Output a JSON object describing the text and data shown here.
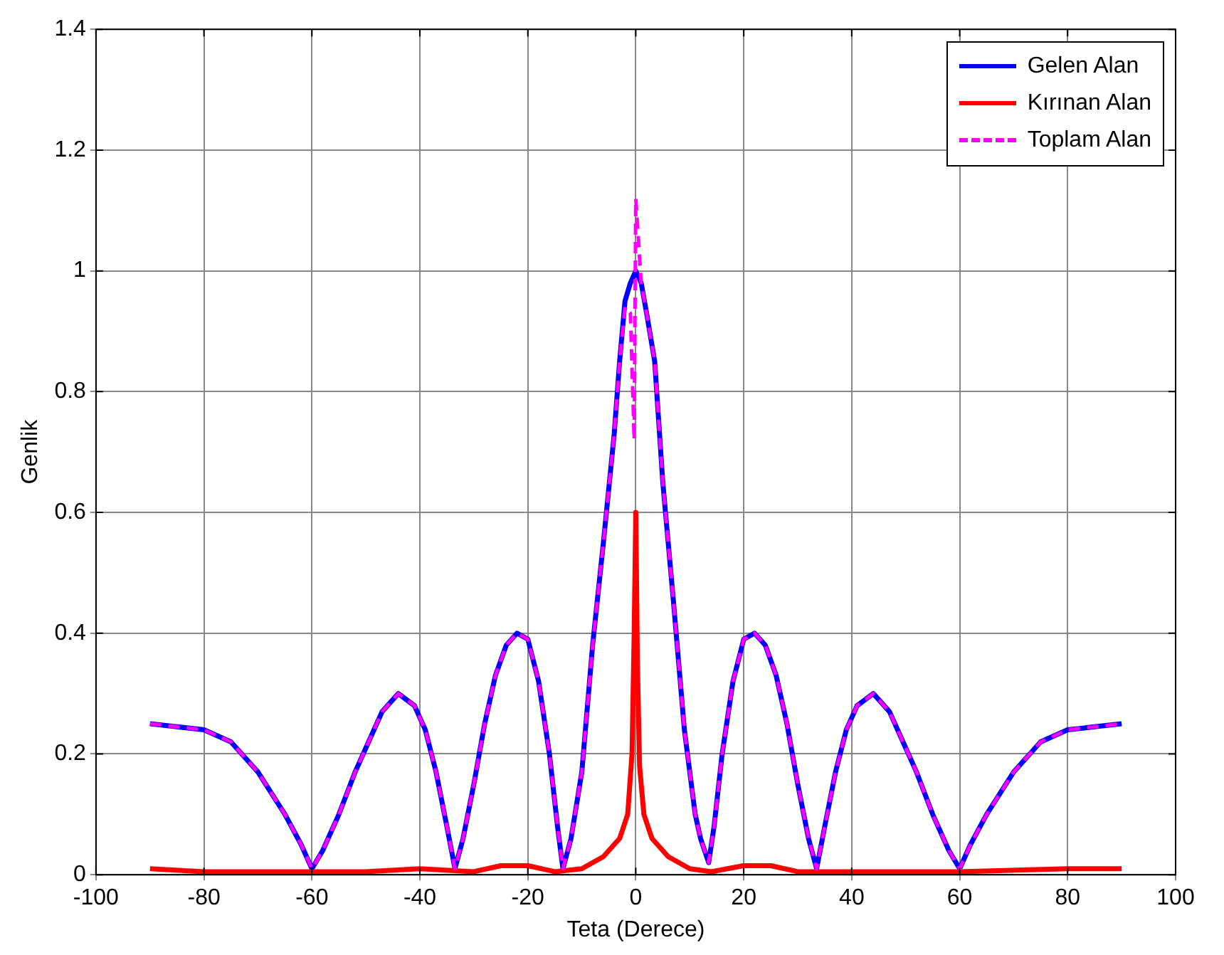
{
  "chart_data": {
    "type": "line",
    "xlabel": "Teta (Derece)",
    "ylabel": "Genlik",
    "xlim": [
      -100,
      100
    ],
    "xticks": [
      -100,
      -80,
      -60,
      -40,
      -20,
      0,
      20,
      40,
      60,
      80,
      100
    ],
    "ylim": [
      0,
      1.4
    ],
    "yticks": [
      0,
      0.2,
      0.4,
      0.6,
      0.8,
      1,
      1.2,
      1.4
    ],
    "grid": true,
    "legend": "top right",
    "marker": "none",
    "series": [
      {
        "name": "Gelen Alan",
        "color": "#0000ff",
        "line_style": "solid",
        "x": [
          -90,
          -85,
          -80,
          -75,
          -70,
          -65,
          -62,
          -60,
          -58,
          -55,
          -52,
          -50,
          -47,
          -44,
          -41,
          -39,
          -37,
          -35,
          -33.5,
          -32,
          -30,
          -28,
          -26,
          -24,
          -22,
          -20,
          -18,
          -16,
          -14.5,
          -13.5,
          -12,
          -10,
          -8,
          -6,
          -4,
          -3,
          -2,
          -1,
          0,
          1,
          2,
          3.5,
          5,
          7,
          9,
          11,
          12,
          13.5,
          14.5,
          16,
          18,
          20,
          22,
          24,
          26,
          28,
          30,
          32,
          33.5,
          35,
          37,
          39,
          41,
          44,
          47,
          50,
          52,
          55,
          58,
          60,
          62,
          65,
          70,
          75,
          80,
          85,
          90
        ],
        "values": [
          0.25,
          0.245,
          0.24,
          0.22,
          0.17,
          0.1,
          0.05,
          0.01,
          0.04,
          0.1,
          0.17,
          0.21,
          0.27,
          0.3,
          0.28,
          0.24,
          0.17,
          0.08,
          0.01,
          0.06,
          0.15,
          0.25,
          0.33,
          0.38,
          0.4,
          0.39,
          0.32,
          0.2,
          0.08,
          0.01,
          0.06,
          0.17,
          0.38,
          0.55,
          0.73,
          0.85,
          0.95,
          0.98,
          1,
          0.98,
          0.93,
          0.85,
          0.65,
          0.45,
          0.24,
          0.1,
          0.06,
          0.02,
          0.08,
          0.2,
          0.32,
          0.39,
          0.4,
          0.38,
          0.33,
          0.25,
          0.15,
          0.06,
          0.01,
          0.08,
          0.17,
          0.24,
          0.28,
          0.3,
          0.27,
          0.21,
          0.17,
          0.1,
          0.04,
          0.01,
          0.05,
          0.1,
          0.17,
          0.22,
          0.24,
          0.245,
          0.25
        ]
      },
      {
        "name": "Kırınan Alan",
        "color": "#ff0000",
        "line_style": "solid",
        "x": [
          -90,
          -80,
          -50,
          -40,
          -30,
          -25,
          -20,
          -15,
          -10,
          -6,
          -3,
          -1.5,
          -0.7,
          -0.3,
          0,
          0.3,
          0.7,
          1.5,
          3,
          6,
          10,
          14,
          20,
          25,
          30,
          40,
          60,
          80,
          90
        ],
        "values": [
          0.01,
          0.005,
          0.005,
          0.01,
          0.005,
          0.015,
          0.015,
          0.005,
          0.01,
          0.03,
          0.06,
          0.1,
          0.2,
          0.4,
          0.6,
          0.35,
          0.18,
          0.1,
          0.06,
          0.03,
          0.01,
          0.005,
          0.015,
          0.015,
          0.005,
          0.005,
          0.005,
          0.01,
          0.01
        ]
      },
      {
        "name": "Toplam Alan",
        "color": "#ff00ff",
        "line_style": "dashed",
        "x": [
          -90,
          -85,
          -80,
          -75,
          -70,
          -65,
          -62,
          -60,
          -58,
          -55,
          -52,
          -50,
          -47,
          -44,
          -41,
          -39,
          -37,
          -35,
          -33.5,
          -32,
          -30,
          -28,
          -26,
          -24,
          -22,
          -20,
          -18,
          -16,
          -14.5,
          -13.5,
          -12,
          -10,
          -8,
          -6,
          -4,
          -3,
          -2,
          -1,
          -0.3,
          0,
          0.5,
          1,
          2,
          3.5,
          5,
          7,
          9,
          11,
          12,
          13.5,
          14.5,
          16,
          18,
          20,
          22,
          24,
          26,
          28,
          30,
          32,
          33.5,
          35,
          37,
          39,
          41,
          44,
          47,
          50,
          52,
          55,
          58,
          60,
          62,
          65,
          70,
          75,
          80,
          85,
          90
        ],
        "values": [
          0.25,
          0.245,
          0.24,
          0.22,
          0.17,
          0.1,
          0.05,
          0.01,
          0.04,
          0.1,
          0.17,
          0.21,
          0.27,
          0.3,
          0.28,
          0.24,
          0.17,
          0.08,
          0.01,
          0.06,
          0.15,
          0.25,
          0.33,
          0.38,
          0.4,
          0.39,
          0.32,
          0.2,
          0.08,
          0.01,
          0.06,
          0.17,
          0.38,
          0.55,
          0.73,
          0.85,
          0.94,
          0.93,
          0.72,
          1.12,
          1.05,
          0.98,
          0.93,
          0.85,
          0.65,
          0.45,
          0.24,
          0.1,
          0.06,
          0.02,
          0.08,
          0.2,
          0.32,
          0.39,
          0.4,
          0.38,
          0.33,
          0.25,
          0.15,
          0.06,
          0.01,
          0.08,
          0.17,
          0.24,
          0.28,
          0.3,
          0.27,
          0.21,
          0.17,
          0.1,
          0.04,
          0.01,
          0.05,
          0.1,
          0.17,
          0.22,
          0.24,
          0.245,
          0.25
        ]
      }
    ]
  }
}
